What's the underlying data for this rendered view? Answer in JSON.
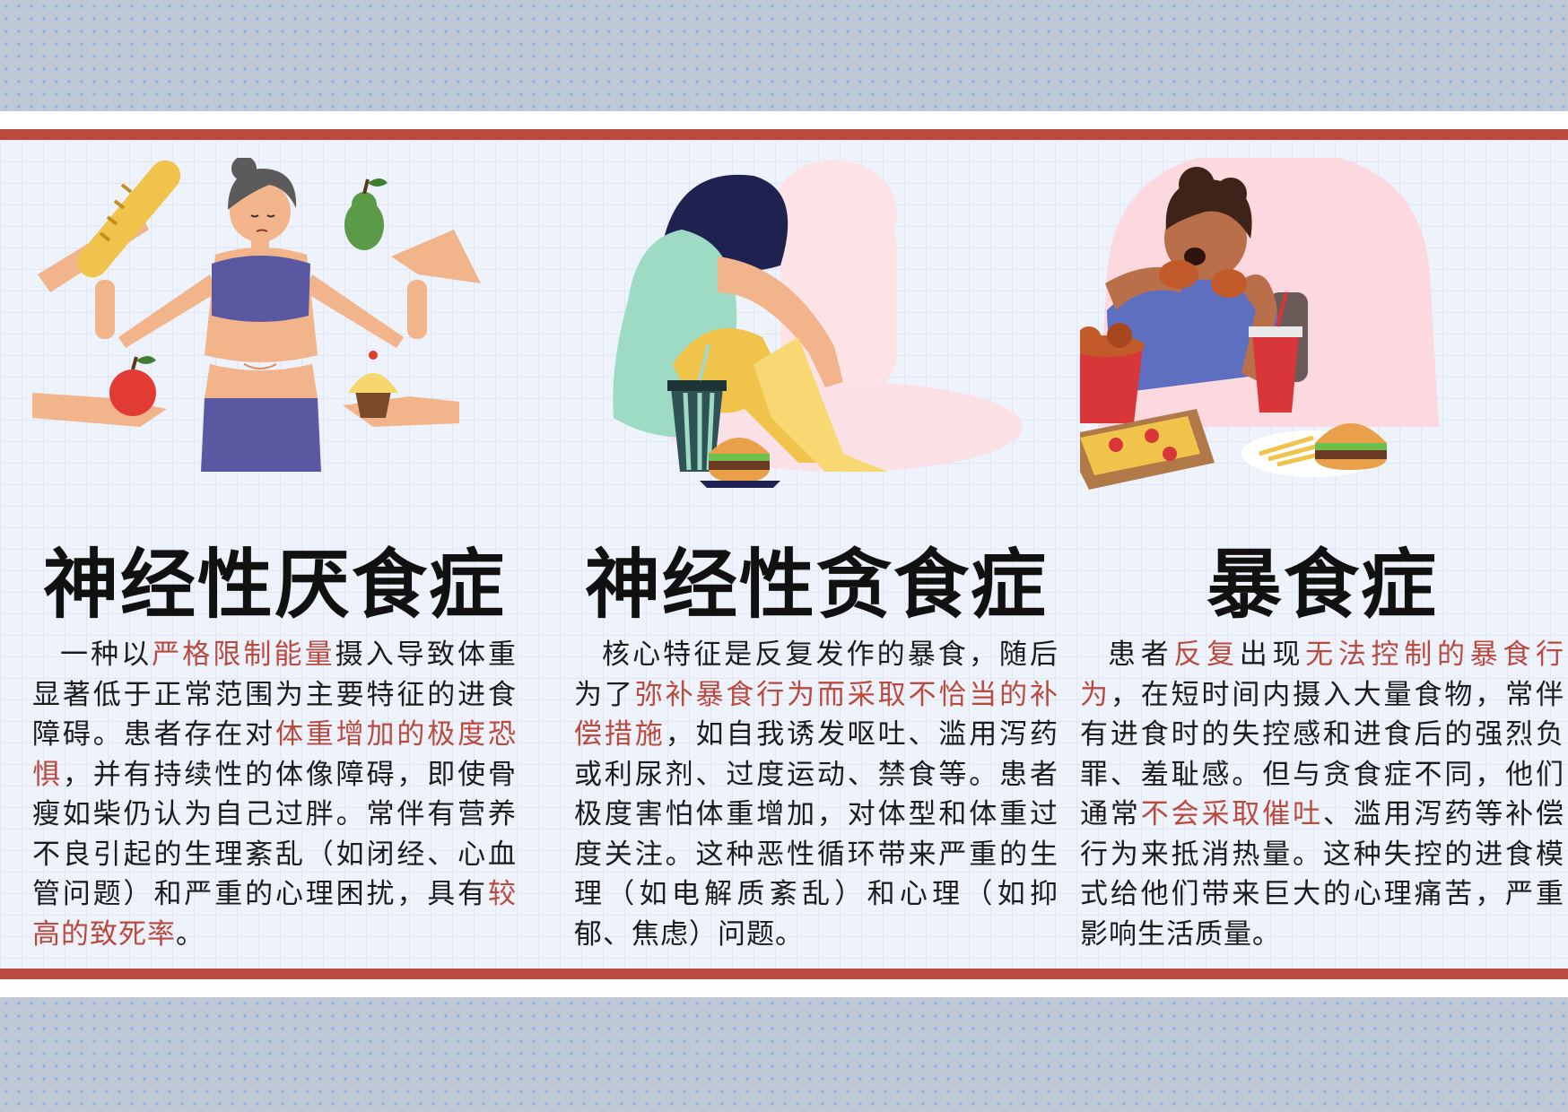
{
  "colors": {
    "accent_red": "#b94a3f",
    "band": "#bfc9d6",
    "band_dots": "#8fb0e6",
    "panel": "#eef2fb",
    "text": "#1c1c1c"
  },
  "columns": [
    {
      "title": "神经性厌食症",
      "illustration": "woman-refusing-food-illustration",
      "body": [
        {
          "text": "一种以",
          "hl": false
        },
        {
          "text": "严格限制能量",
          "hl": true
        },
        {
          "text": "摄入导致体重显著低于正常范围为主要特征的进食障碍。患者存在对",
          "hl": false
        },
        {
          "text": "体重增加的极度恐惧",
          "hl": true
        },
        {
          "text": "，并有持续性的体像障碍，即使骨瘦如柴仍认为自己过胖。常伴有营养不良引起的生理紊乱（如闭经、心血管问题）和严重的心理困扰，具有",
          "hl": false
        },
        {
          "text": "较高的致死率",
          "hl": true
        },
        {
          "text": "。",
          "hl": false
        }
      ]
    },
    {
      "title": "神经性贪食症",
      "illustration": "girl-hugging-knees-illustration",
      "body": [
        {
          "text": "核心特征是反复发作的暴食，随后为了",
          "hl": false
        },
        {
          "text": "弥补暴食行为而采取不恰当的补偿措施",
          "hl": true
        },
        {
          "text": "，如自我诱发呕吐、滥用泻药或利尿剂、过度运动、禁食等。患者极度害怕体重增加，对体型和体重过度关注。这种恶性循环带来严重的生理（如电解质紊乱）和心理（如抑郁、焦虑）问题。",
          "hl": false
        }
      ]
    },
    {
      "title": "暴食症",
      "illustration": "man-eating-fast-food-illustration",
      "body": [
        {
          "text": "患者",
          "hl": false
        },
        {
          "text": "反复",
          "hl": true
        },
        {
          "text": "出现",
          "hl": false
        },
        {
          "text": "无法控制的暴食行为",
          "hl": true
        },
        {
          "text": "，在短时间内摄入大量食物，常伴有进食时的失控感和进食后的强烈负罪、羞耻感。但与贪食症不同，他们通常",
          "hl": false
        },
        {
          "text": "不会采取催吐",
          "hl": true
        },
        {
          "text": "、滥用泻药等补偿行为来抵消热量。这种失控的进食模式给他们带来巨大的心理痛苦，严重影响生活质量。",
          "hl": false
        }
      ]
    }
  ]
}
